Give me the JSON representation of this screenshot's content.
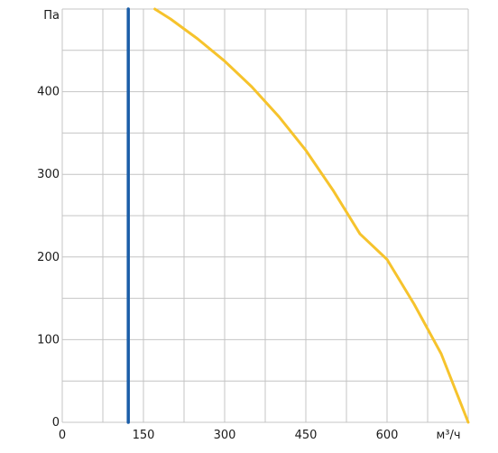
{
  "chart_data": {
    "type": "line",
    "title": "",
    "xlabel": "м³/ч",
    "ylabel": "Па",
    "xlim": [
      0,
      750
    ],
    "ylim": [
      0,
      500
    ],
    "x_ticks": [
      0,
      150,
      300,
      450,
      600
    ],
    "x_tick_labels": [
      "0",
      "150",
      "300",
      "450",
      "600"
    ],
    "y_ticks": [
      0,
      100,
      200,
      300,
      400
    ],
    "y_tick_labels": [
      "0",
      "100",
      "200",
      "300",
      "400"
    ],
    "x_gridlines": [
      0,
      75,
      150,
      225,
      300,
      375,
      450,
      525,
      600,
      675,
      750
    ],
    "y_gridlines": [
      0,
      50,
      100,
      150,
      200,
      250,
      300,
      350,
      400,
      450,
      500
    ],
    "grid": true,
    "series": [
      {
        "color": "#f6c32c",
        "x": [
          171,
          200,
          250,
          300,
          350,
          400,
          450,
          500,
          550,
          600,
          650,
          700,
          750
        ],
        "y": [
          500,
          488,
          464,
          437,
          406,
          370,
          329,
          281,
          228,
          197,
          143,
          83,
          0
        ]
      },
      {
        "color": "#1b5ea8",
        "x": [
          122,
          122
        ],
        "y": [
          0,
          500
        ]
      }
    ]
  }
}
